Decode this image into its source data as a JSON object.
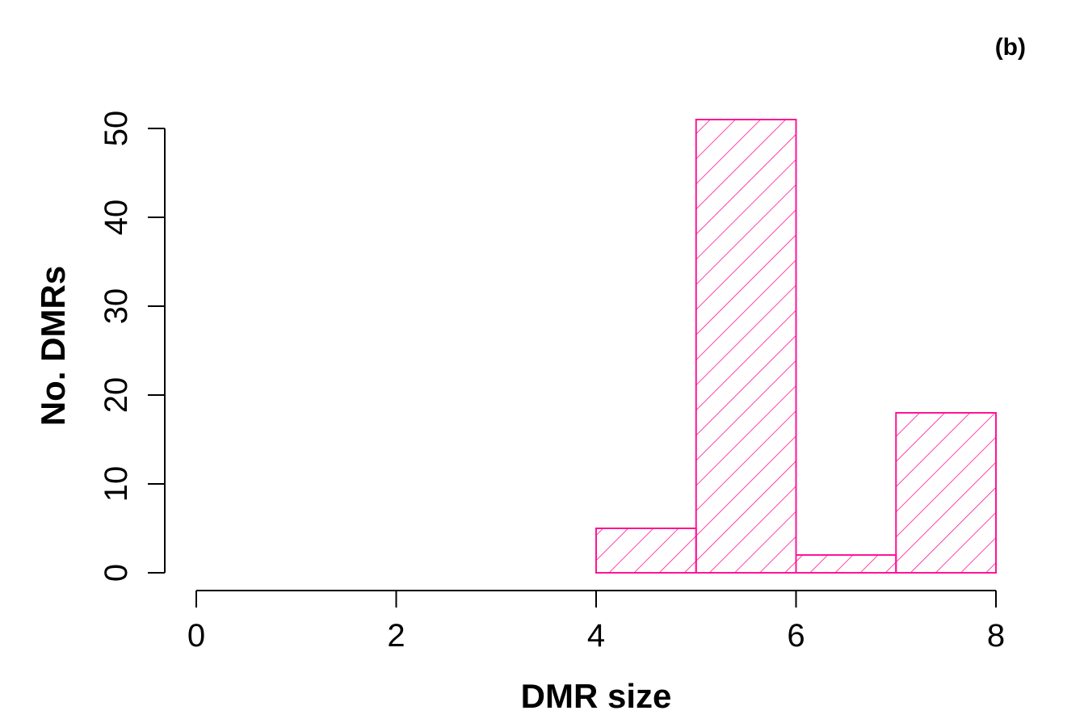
{
  "panel_label": "(b)",
  "chart_data": {
    "type": "bar",
    "subtype": "histogram",
    "xlabel": "DMR size",
    "ylabel": "No. DMRs",
    "bins": [
      {
        "x0": 0,
        "x1": 1,
        "count": 0
      },
      {
        "x0": 1,
        "x1": 2,
        "count": 0
      },
      {
        "x0": 2,
        "x1": 3,
        "count": 0
      },
      {
        "x0": 3,
        "x1": 4,
        "count": 0
      },
      {
        "x0": 4,
        "x1": 5,
        "count": 5
      },
      {
        "x0": 5,
        "x1": 6,
        "count": 51
      },
      {
        "x0": 6,
        "x1": 7,
        "count": 2
      },
      {
        "x0": 7,
        "x1": 8,
        "count": 18
      }
    ],
    "xlim": [
      0,
      8
    ],
    "ylim": [
      0,
      50
    ],
    "xticks": [
      0,
      2,
      4,
      6,
      8
    ],
    "yticks": [
      0,
      10,
      20,
      30,
      40,
      50
    ],
    "grid": false,
    "bar_color": "#ff1493",
    "fill": "diagonal hatch"
  }
}
